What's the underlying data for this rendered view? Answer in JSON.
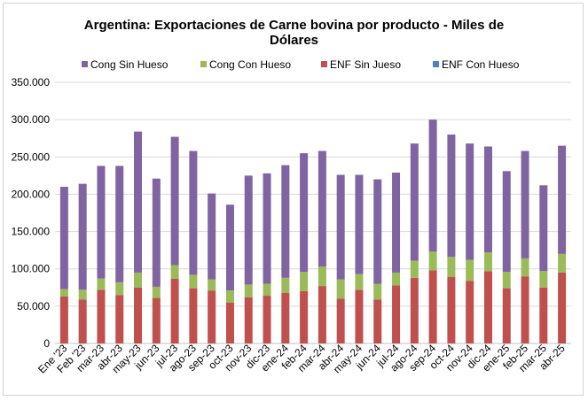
{
  "chart_data": {
    "type": "bar",
    "stacked": true,
    "title_lines": [
      "Argentina: Exportaciones de Carne bovina por producto - Miles de",
      "Dólares"
    ],
    "categories": [
      "Ene '23",
      "Feb '23",
      "mar-23",
      "abr-23",
      "may-23",
      "jun-23",
      "jul-23",
      "ago-23",
      "sep-23",
      "oct-23",
      "nov-23",
      "dic-23",
      "ene-24",
      "feb-24",
      "mar-24",
      "abr-24",
      "may-24",
      "jun-24",
      "jul-24",
      "ago-24",
      "sep-24",
      "oct-24",
      "nov-24",
      "dic-24",
      "ene-25",
      "feb-25",
      "mar-25",
      "abr-25"
    ],
    "series": [
      {
        "name": "ENF Sin Jueso",
        "color": "#c0504d",
        "values": [
          63000,
          59000,
          72000,
          65000,
          75000,
          61000,
          87000,
          74000,
          71000,
          55000,
          62000,
          64000,
          68000,
          70000,
          77000,
          60000,
          72000,
          59000,
          78000,
          88000,
          98000,
          89000,
          84000,
          97000,
          74000,
          90000,
          75000,
          95000
        ]
      },
      {
        "name": "Cong Con Hueso",
        "color": "#9bbb59",
        "values": [
          10000,
          13000,
          15000,
          17000,
          20000,
          15000,
          18000,
          18000,
          15000,
          16000,
          17000,
          16000,
          20000,
          26000,
          26000,
          26000,
          21000,
          21000,
          17000,
          23000,
          25000,
          27000,
          28000,
          25000,
          22000,
          24000,
          22000,
          25000
        ]
      },
      {
        "name": "Cong Sin Hueso",
        "color": "#8064a2",
        "values": [
          137000,
          142000,
          151000,
          156000,
          189000,
          145000,
          172000,
          166000,
          115000,
          115000,
          146000,
          148000,
          151000,
          159000,
          155000,
          140000,
          133000,
          140000,
          134000,
          157000,
          177000,
          164000,
          156000,
          142000,
          135000,
          144000,
          115000,
          145000
        ]
      },
      {
        "name": "ENF Con Hueso",
        "color": "#4f81bd",
        "values": [
          0,
          0,
          0,
          0,
          0,
          0,
          0,
          0,
          0,
          0,
          0,
          0,
          0,
          0,
          0,
          0,
          0,
          0,
          0,
          0,
          0,
          0,
          0,
          0,
          0,
          0,
          0,
          0
        ]
      }
    ],
    "legend_order": [
      "Cong Sin Hueso",
      "Cong Con Hueso",
      "ENF Sin Jueso",
      "ENF Con Hueso"
    ],
    "ylim": [
      0,
      350000
    ],
    "yticks": [
      0,
      50000,
      100000,
      150000,
      200000,
      250000,
      300000,
      350000
    ],
    "ytick_labels": [
      "0",
      "50.000",
      "100.000",
      "150.000",
      "200.000",
      "250.000",
      "300.000",
      "350.000"
    ],
    "grid": true,
    "legend_position": "top",
    "xlabel": "",
    "ylabel": ""
  }
}
